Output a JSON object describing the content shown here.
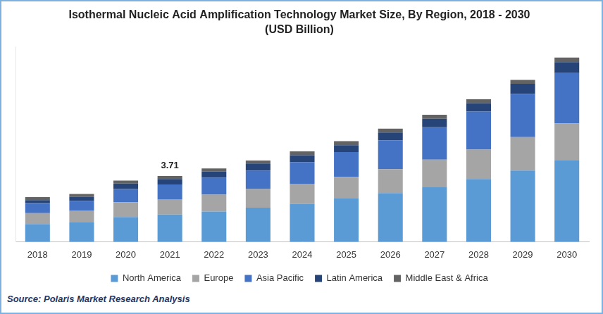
{
  "chart_data": {
    "type": "bar",
    "title": "Isothermal Nucleic Acid Amplification Technology Market Size, By Region, 2018 - 2030",
    "subtitle": "(USD Billion)",
    "source": "Source: Polaris Market Research Analysis",
    "categories": [
      "2018",
      "2019",
      "2020",
      "2021",
      "2022",
      "2023",
      "2024",
      "2025",
      "2026",
      "2027",
      "2028",
      "2029",
      "2030"
    ],
    "series": [
      {
        "name": "North America",
        "color": "#5b9bd5",
        "values": [
          1.0,
          1.09,
          1.4,
          1.53,
          1.7,
          1.92,
          2.14,
          2.44,
          2.75,
          3.1,
          3.54,
          4.02,
          4.58
        ]
      },
      {
        "name": "Europe",
        "color": "#a5a5a5",
        "values": [
          0.61,
          0.65,
          0.83,
          0.87,
          0.96,
          1.05,
          1.13,
          1.22,
          1.35,
          1.53,
          1.66,
          1.88,
          2.1
        ]
      },
      {
        "name": "Asia Pacific",
        "color": "#4472c4",
        "values": [
          0.57,
          0.57,
          0.74,
          0.83,
          0.96,
          1.05,
          1.22,
          1.4,
          1.62,
          1.83,
          2.14,
          2.44,
          2.84
        ]
      },
      {
        "name": "Latin America",
        "color": "#264478",
        "values": [
          0.17,
          0.22,
          0.31,
          0.31,
          0.35,
          0.39,
          0.39,
          0.39,
          0.44,
          0.48,
          0.48,
          0.57,
          0.61
        ]
      },
      {
        "name": "Middle East & Africa",
        "color": "#636363",
        "values": [
          0.17,
          0.17,
          0.17,
          0.17,
          0.17,
          0.17,
          0.22,
          0.22,
          0.22,
          0.22,
          0.22,
          0.22,
          0.26
        ]
      }
    ],
    "annotations": [
      {
        "category": "2021",
        "value": 3.71,
        "text": "3.71"
      }
    ],
    "stacked": true,
    "ylim": [
      0,
      11
    ],
    "tick_labels": "x",
    "grid": false,
    "legend": "bottom"
  }
}
